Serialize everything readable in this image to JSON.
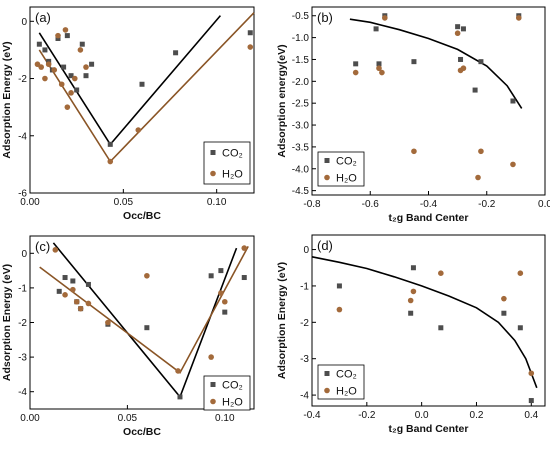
{
  "colors": {
    "co2": "#4d4d4d",
    "h2o": "#a36a3b",
    "fit_co2": "#000000",
    "fit_h2o": "#8a5526"
  },
  "chart_data": [
    {
      "panel_label": "(a)",
      "type": "scatter",
      "xlabel": "Occ/BC",
      "ylabel": "Adsorption Energy (eV)",
      "xlim": [
        0,
        0.12
      ],
      "ylim": [
        -6,
        0.5
      ],
      "xticks": [
        "0.00",
        "0.05",
        "0.10"
      ],
      "xtick_values": [
        0,
        0.05,
        0.1
      ],
      "yticks": [
        "0",
        "-2",
        "-4",
        "-6"
      ],
      "ytick_values": [
        0,
        -2,
        -4,
        -6
      ],
      "legend": "bottom-right",
      "series": [
        {
          "name": "CO₂",
          "marker": "square",
          "x": [
            0.005,
            0.008,
            0.01,
            0.012,
            0.015,
            0.018,
            0.02,
            0.022,
            0.025,
            0.028,
            0.03,
            0.033,
            0.043,
            0.06,
            0.078,
            0.118
          ],
          "y": [
            -0.8,
            -1.0,
            -1.4,
            -1.7,
            -0.6,
            -1.6,
            -0.5,
            -1.9,
            -2.4,
            -0.8,
            -1.9,
            -1.5,
            -4.3,
            -2.2,
            -1.1,
            -0.4
          ]
        },
        {
          "name": "H₂O",
          "marker": "circle",
          "x": [
            0.004,
            0.006,
            0.008,
            0.01,
            0.013,
            0.015,
            0.017,
            0.019,
            0.02,
            0.022,
            0.024,
            0.027,
            0.03,
            0.043,
            0.058,
            0.118
          ],
          "y": [
            -1.5,
            -1.6,
            -2.0,
            -1.5,
            -1.7,
            -0.5,
            -2.2,
            -0.3,
            -3.0,
            -2.5,
            -2.0,
            -1.0,
            -1.6,
            -4.9,
            -3.8,
            -0.9
          ]
        }
      ],
      "fit_lines": [
        {
          "series": "CO₂",
          "x": [
            0.005,
            0.043,
            0.102
          ],
          "y": [
            -0.4,
            -4.3,
            0.2
          ]
        },
        {
          "series": "H₂O",
          "x": [
            0.005,
            0.043,
            0.12
          ],
          "y": [
            -1.0,
            -4.9,
            0.3
          ]
        }
      ]
    },
    {
      "panel_label": "(b)",
      "type": "scatter",
      "xlabel": "t₂g Band Center",
      "ylabel": "Adsorption energy(eV)",
      "xlim": [
        -0.8,
        0.0
      ],
      "ylim": [
        -4.6,
        -0.3
      ],
      "xticks": [
        "-0.8",
        "-0.6",
        "-0.4",
        "-0.2",
        "0.0"
      ],
      "xtick_values": [
        -0.8,
        -0.6,
        -0.4,
        -0.2,
        0.0
      ],
      "yticks": [
        "-0.5",
        "-1.0",
        "-1.5",
        "-2.0",
        "-2.5",
        "-3.0",
        "-3.5",
        "-4.0",
        "-4.5"
      ],
      "ytick_values": [
        -0.5,
        -1.0,
        -1.5,
        -2.0,
        -2.5,
        -3.0,
        -3.5,
        -4.0,
        -4.5
      ],
      "legend": "bottom-left",
      "series": [
        {
          "name": "CO₂",
          "marker": "square",
          "x": [
            -0.65,
            -0.58,
            -0.57,
            -0.55,
            -0.45,
            -0.3,
            -0.29,
            -0.28,
            -0.24,
            -0.22,
            -0.11,
            -0.09
          ],
          "y": [
            -1.6,
            -0.8,
            -1.6,
            -0.5,
            -1.55,
            -0.75,
            -1.5,
            -0.8,
            -2.2,
            -1.55,
            -2.45,
            -0.5
          ]
        },
        {
          "name": "H₂O",
          "marker": "circle",
          "x": [
            -0.65,
            -0.57,
            -0.56,
            -0.55,
            -0.45,
            -0.3,
            -0.29,
            -0.28,
            -0.23,
            -0.22,
            -0.11,
            -0.09
          ],
          "y": [
            -1.8,
            -1.7,
            -1.8,
            -0.55,
            -3.6,
            -0.9,
            -1.75,
            -1.7,
            -4.2,
            -3.6,
            -3.9,
            -0.55
          ]
        }
      ],
      "fit_lines": [
        {
          "series": "fit",
          "x": [
            -0.67,
            -0.6,
            -0.5,
            -0.4,
            -0.3,
            -0.2,
            -0.13,
            -0.08
          ],
          "y": [
            -0.58,
            -0.65,
            -0.82,
            -1.02,
            -1.27,
            -1.65,
            -2.1,
            -2.62
          ]
        }
      ]
    },
    {
      "panel_label": "(c)",
      "type": "scatter",
      "xlabel": "Occ/BC",
      "ylabel": "Adsorption Energy (eV)",
      "xlim": [
        0,
        0.115
      ],
      "ylim": [
        -4.5,
        0.5
      ],
      "xticks": [
        "0.00",
        "0.05",
        "0.10"
      ],
      "xtick_values": [
        0,
        0.05,
        0.1
      ],
      "yticks": [
        "0",
        "-1",
        "-2",
        "-3",
        "-4"
      ],
      "ytick_values": [
        0,
        -1,
        -2,
        -3,
        -4
      ],
      "legend": "bottom-right",
      "series": [
        {
          "name": "CO₂",
          "marker": "square",
          "x": [
            0.015,
            0.018,
            0.022,
            0.024,
            0.026,
            0.03,
            0.04,
            0.06,
            0.077,
            0.093,
            0.098,
            0.1,
            0.11
          ],
          "y": [
            -1.1,
            -0.7,
            -0.8,
            -1.4,
            -1.6,
            -0.9,
            -2.05,
            -2.15,
            -4.15,
            -0.65,
            -0.5,
            -1.7,
            -0.7
          ]
        },
        {
          "name": "H₂O",
          "marker": "circle",
          "x": [
            0.013,
            0.018,
            0.022,
            0.024,
            0.026,
            0.03,
            0.04,
            0.06,
            0.076,
            0.093,
            0.098,
            0.1,
            0.11
          ],
          "y": [
            0.1,
            -1.2,
            -1.05,
            -1.4,
            -1.6,
            -1.45,
            -2.0,
            -0.65,
            -3.4,
            -3.0,
            -1.15,
            -1.4,
            0.15
          ]
        }
      ],
      "fit_lines": [
        {
          "series": "CO₂",
          "x": [
            0.012,
            0.077,
            0.106
          ],
          "y": [
            0.3,
            -4.15,
            0.15
          ]
        },
        {
          "series": "H₂O",
          "x": [
            0.005,
            0.077,
            0.112
          ],
          "y": [
            -0.4,
            -3.45,
            0.2
          ]
        }
      ]
    },
    {
      "panel_label": "(d)",
      "type": "scatter",
      "xlabel": "t₂g Band Center",
      "ylabel": "Adsorption Energy (eV)",
      "xlim": [
        -0.4,
        0.45
      ],
      "ylim": [
        -4.3,
        0.4
      ],
      "xticks": [
        "-0.4",
        "-0.2",
        "0.0",
        "0.2",
        "0.4"
      ],
      "xtick_values": [
        -0.4,
        -0.2,
        0.0,
        0.2,
        0.4
      ],
      "yticks": [
        "0",
        "-1",
        "-2",
        "-3",
        "-4"
      ],
      "ytick_values": [
        0,
        -1,
        -2,
        -3,
        -4
      ],
      "legend": "bottom-left",
      "series": [
        {
          "name": "CO₂",
          "marker": "square",
          "x": [
            -0.3,
            -0.04,
            -0.03,
            0.07,
            0.3,
            0.36,
            0.4
          ],
          "y": [
            -1.0,
            -1.75,
            -0.5,
            -2.15,
            -1.75,
            -2.15,
            -4.15
          ]
        },
        {
          "name": "H₂O",
          "marker": "circle",
          "x": [
            -0.3,
            -0.04,
            -0.03,
            0.07,
            0.3,
            0.36,
            0.4
          ],
          "y": [
            -1.65,
            -1.4,
            -1.15,
            -0.65,
            -1.35,
            -0.65,
            -3.4
          ]
        }
      ],
      "fit_lines": [
        {
          "series": "fit",
          "x": [
            -0.4,
            -0.3,
            -0.2,
            -0.1,
            0.0,
            0.1,
            0.2,
            0.28,
            0.34,
            0.38,
            0.42
          ],
          "y": [
            -0.2,
            -0.35,
            -0.52,
            -0.75,
            -1.0,
            -1.28,
            -1.6,
            -2.0,
            -2.5,
            -3.0,
            -3.8
          ]
        }
      ]
    }
  ]
}
